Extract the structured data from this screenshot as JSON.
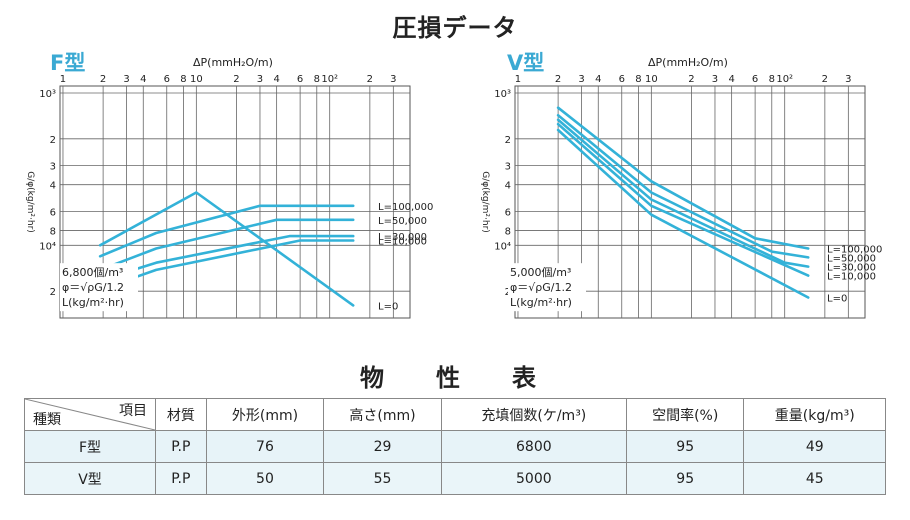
{
  "titles": {
    "main": "圧損データ",
    "props": "物　性　表"
  },
  "chart_data": [
    {
      "type": "line",
      "label": "F型",
      "xlabel": "ΔP(mmH₂O/m)",
      "ylabel": "G/φ(kg/m²·hr)",
      "x_ticks": [
        "1",
        "2",
        "3",
        "4",
        "6",
        "8",
        "10",
        "2",
        "3",
        "4",
        "6",
        "8",
        "10²",
        "2",
        "3"
      ],
      "y_ticks": [
        "10³",
        "2",
        "3",
        "4",
        "6",
        "8",
        "10⁴",
        "2"
      ],
      "xscale": "log",
      "yscale": "log",
      "note_lines": [
        "6,800個/m³",
        "φ＝√ρG/1.2",
        "L(kg/m²·hr)"
      ],
      "series": [
        {
          "name": "L=100,000",
          "points": [
            [
              1.9,
              11800
            ],
            [
              5,
              8300
            ],
            [
              30,
              5500
            ],
            [
              150,
              5500
            ]
          ]
        },
        {
          "name": "L=50,000",
          "points": [
            [
              1.9,
              14500
            ],
            [
              5,
              10500
            ],
            [
              40,
              6800
            ],
            [
              150,
              6800
            ]
          ]
        },
        {
          "name": "L=30,000",
          "points": [
            [
              1.9,
              17000
            ],
            [
              5,
              13000
            ],
            [
              50,
              8700
            ],
            [
              150,
              8700
            ]
          ]
        },
        {
          "name": "L=10,000",
          "points": [
            [
              1.9,
              19500
            ],
            [
              5,
              14500
            ],
            [
              60,
              9300
            ],
            [
              150,
              9300
            ]
          ]
        },
        {
          "name": "L=0",
          "points": [
            [
              1.9,
              10000
            ],
            [
              10,
              4500
            ],
            [
              150,
              24800
            ]
          ]
        }
      ]
    },
    {
      "type": "line",
      "label": "V型",
      "xlabel": "ΔP(mmH₂O/m)",
      "ylabel": "G/φ(kg/m²·hr)",
      "x_ticks": [
        "1",
        "2",
        "3",
        "4",
        "6",
        "8",
        "10",
        "2",
        "3",
        "4",
        "6",
        "8",
        "10²",
        "2",
        "3"
      ],
      "y_ticks": [
        "10³",
        "2",
        "3",
        "4",
        "6",
        "8",
        "10⁴",
        "2"
      ],
      "xscale": "log",
      "yscale": "log",
      "note_lines": [
        "5,000個/m³",
        "φ＝√ρG/1.2",
        "L(kg/m²·hr)"
      ],
      "series": [
        {
          "name": "L=100,000",
          "points": [
            [
              2,
              1250
            ],
            [
              10,
              3800
            ],
            [
              60,
              9000
            ],
            [
              150,
              10500
            ]
          ]
        },
        {
          "name": "L=50,000",
          "points": [
            [
              2,
              1400
            ],
            [
              10,
              4500
            ],
            [
              80,
              11000
            ],
            [
              150,
              12000
            ]
          ]
        },
        {
          "name": "L=30,000",
          "points": [
            [
              2,
              1500
            ],
            [
              10,
              5000
            ],
            [
              100,
              13000
            ],
            [
              150,
              13800
            ]
          ]
        },
        {
          "name": "L=10,000",
          "points": [
            [
              2,
              1600
            ],
            [
              10,
              5500
            ],
            [
              150,
              15800
            ]
          ]
        },
        {
          "name": "L=0",
          "points": [
            [
              2,
              1750
            ],
            [
              10,
              6300
            ],
            [
              150,
              22000
            ]
          ]
        }
      ]
    }
  ],
  "table": {
    "corner_top": "項目",
    "corner_bottom": "種類",
    "headers": [
      "材質",
      "外形(mm)",
      "高さ(mm)",
      "充填個数(ケ/m³)",
      "空間率(%)",
      "重量(kg/m³)"
    ],
    "rows": [
      {
        "type": "F型",
        "cells": [
          "P.P",
          "76",
          "29",
          "6800",
          "95",
          "49"
        ]
      },
      {
        "type": "V型",
        "cells": [
          "P.P",
          "50",
          "55",
          "5000",
          "95",
          "45"
        ]
      }
    ]
  },
  "colors": {
    "accent": "#3aa9d3",
    "line": "#33b2d8",
    "grid": "#666666",
    "row_bg": "#e7f3f8"
  }
}
